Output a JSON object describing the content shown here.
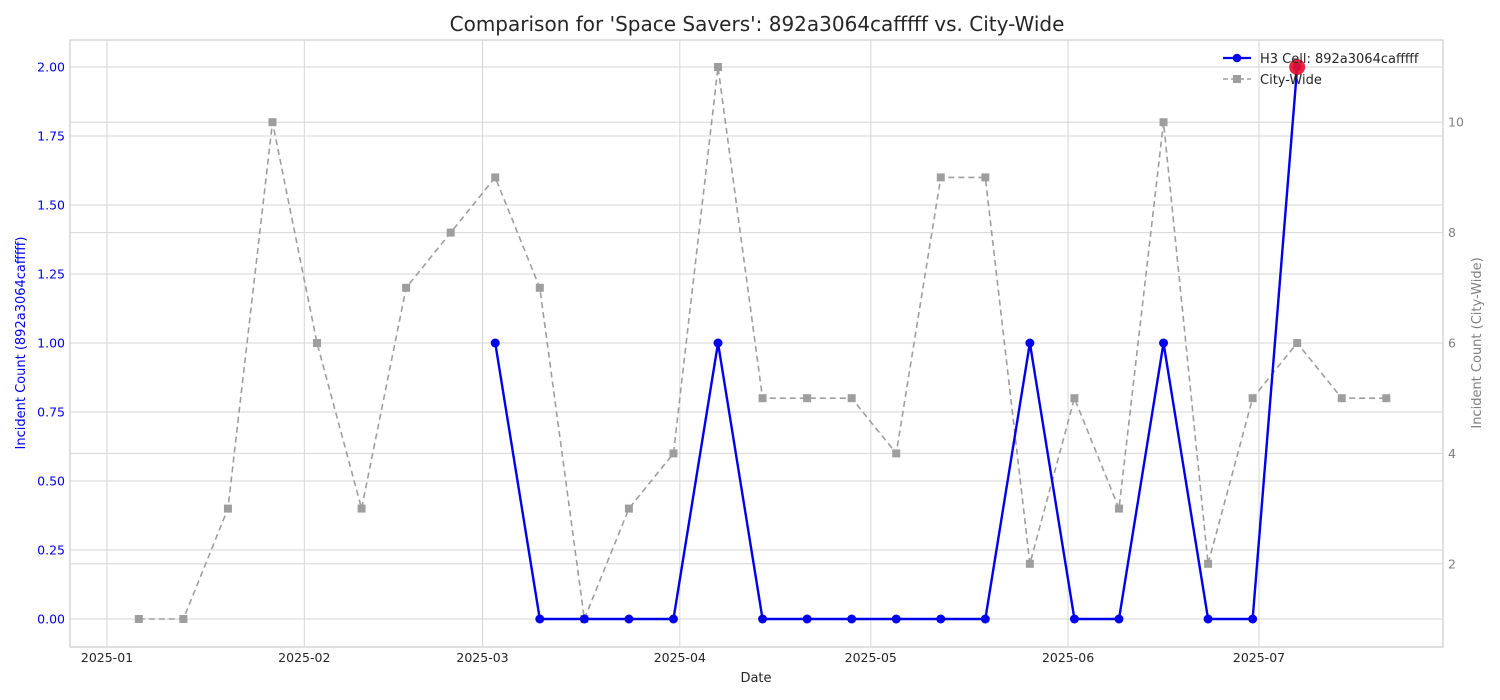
{
  "chart_data": {
    "type": "line",
    "title": "Comparison for 'Space Savers': 892a3064cafffff vs. City-Wide",
    "xlabel": "Date",
    "ylabel_left": "Incident Count (892a3064cafffff)",
    "ylabel_right": "Incident Count (City-Wide)",
    "x_ticks": [
      "2025-01",
      "2025-02",
      "2025-03",
      "2025-04",
      "2025-05",
      "2025-06",
      "2025-07"
    ],
    "y_left_ticks": [
      "0.00",
      "0.25",
      "0.50",
      "0.75",
      "1.00",
      "1.25",
      "1.50",
      "1.75",
      "2.00"
    ],
    "y_right_ticks": [
      "2",
      "4",
      "6",
      "8",
      "10"
    ],
    "y_left_lim": [
      -0.1,
      2.1
    ],
    "y_right_lim": [
      -0.2,
      11.5
    ],
    "grid": true,
    "legend_position": "top-right",
    "colors": {
      "cell": "#0000ee",
      "city": "#9e9e9e",
      "highlight": "#e8102d",
      "left_axis_text": "#0000ee",
      "right_axis_text": "#808080"
    },
    "series": [
      {
        "name": "H3 Cell: 892a3064cafffff",
        "axis": "left",
        "style": "solid-circle",
        "x": [
          "2025-03-03",
          "2025-03-10",
          "2025-03-17",
          "2025-03-24",
          "2025-03-31",
          "2025-04-07",
          "2025-04-14",
          "2025-04-21",
          "2025-04-28",
          "2025-05-05",
          "2025-05-12",
          "2025-05-19",
          "2025-05-26",
          "2025-06-02",
          "2025-06-09",
          "2025-06-16",
          "2025-06-23",
          "2025-06-30",
          "2025-07-07"
        ],
        "values": [
          1,
          0,
          0,
          0,
          0,
          1,
          0,
          0,
          0,
          0,
          0,
          0,
          1,
          0,
          0,
          1,
          0,
          0,
          2
        ]
      },
      {
        "name": "City-Wide",
        "axis": "right",
        "style": "dashed-square",
        "x": [
          "2025-01-06",
          "2025-01-13",
          "2025-01-20",
          "2025-01-27",
          "2025-02-03",
          "2025-02-10",
          "2025-02-17",
          "2025-02-24",
          "2025-03-03",
          "2025-03-10",
          "2025-03-17",
          "2025-03-24",
          "2025-03-31",
          "2025-04-07",
          "2025-04-14",
          "2025-04-21",
          "2025-04-28",
          "2025-05-05",
          "2025-05-12",
          "2025-05-19",
          "2025-05-26",
          "2025-06-02",
          "2025-06-09",
          "2025-06-16",
          "2025-06-23",
          "2025-06-30",
          "2025-07-07",
          "2025-07-14",
          "2025-07-21"
        ],
        "values": [
          1,
          1,
          3,
          10,
          6,
          3,
          7,
          8,
          9,
          7,
          1,
          3,
          4,
          11,
          5,
          5,
          5,
          4,
          9,
          9,
          2,
          5,
          3,
          10,
          2,
          5,
          6,
          5,
          5
        ]
      }
    ],
    "highlight_point": {
      "series": "H3 Cell: 892a3064cafffff",
      "x": "2025-07-07",
      "value": 2
    }
  }
}
